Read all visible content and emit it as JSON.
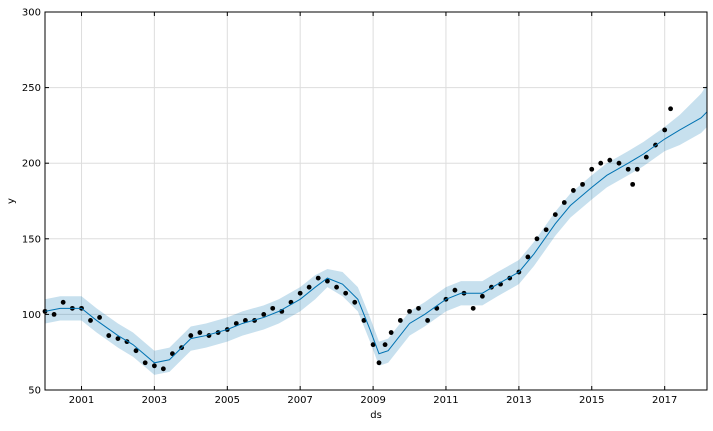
{
  "chart_data": {
    "type": "line",
    "title": "",
    "xlabel": "ds",
    "ylabel": "y",
    "x_range": [
      "2000-01-01",
      "2018-03-01"
    ],
    "ylim": [
      50,
      300
    ],
    "x_tick_labels": [
      "2001",
      "2003",
      "2005",
      "2007",
      "2009",
      "2011",
      "2013",
      "2015",
      "2017"
    ],
    "x_tick_dates": [
      "2001-01-01",
      "2003-01-01",
      "2005-01-01",
      "2007-01-01",
      "2009-01-01",
      "2011-01-01",
      "2013-01-01",
      "2015-01-01",
      "2017-01-01"
    ],
    "y_ticks": [
      50,
      100,
      150,
      200,
      250,
      300
    ],
    "grid": true,
    "colors": {
      "observed": "#000000",
      "forecast_line": "#0072b2",
      "uncertainty_band": "#0072b2"
    },
    "series": [
      {
        "role": "observed",
        "x": [
          "2000-01-01",
          "2000-04-01",
          "2000-07-01",
          "2000-10-01",
          "2001-01-01",
          "2001-04-01",
          "2001-07-01",
          "2001-10-01",
          "2002-01-01",
          "2002-04-01",
          "2002-07-01",
          "2002-10-01",
          "2003-01-01",
          "2003-04-01",
          "2003-07-01",
          "2003-10-01",
          "2004-01-01",
          "2004-04-01",
          "2004-07-01",
          "2004-10-01",
          "2005-01-01",
          "2005-04-01",
          "2005-07-01",
          "2005-10-01",
          "2006-01-01",
          "2006-04-01",
          "2006-07-01",
          "2006-10-01",
          "2007-01-01",
          "2007-04-01",
          "2007-07-01",
          "2007-10-01",
          "2008-01-01",
          "2008-04-01",
          "2008-07-01",
          "2008-10-01",
          "2009-01-01",
          "2009-03-01",
          "2009-05-01",
          "2009-07-01",
          "2009-10-01",
          "2010-01-01",
          "2010-04-01",
          "2010-07-01",
          "2010-10-01",
          "2011-01-01",
          "2011-04-01",
          "2011-07-01",
          "2011-10-01",
          "2012-01-01",
          "2012-04-01",
          "2012-07-01",
          "2012-10-01",
          "2013-01-01",
          "2013-04-01",
          "2013-07-01",
          "2013-10-01",
          "2014-01-01",
          "2014-04-01",
          "2014-07-01",
          "2014-10-01",
          "2015-01-01",
          "2015-04-01",
          "2015-07-01",
          "2015-10-01",
          "2016-01-01",
          "2016-02-15",
          "2016-04-01",
          "2016-07-01",
          "2016-10-01",
          "2017-01-01",
          "2017-03-01"
        ],
        "y": [
          102,
          100,
          108,
          104,
          104,
          96,
          98,
          86,
          84,
          82,
          76,
          68,
          66,
          64,
          74,
          78,
          86,
          88,
          86,
          88,
          90,
          94,
          96,
          96,
          100,
          104,
          102,
          108,
          114,
          118,
          124,
          122,
          118,
          114,
          108,
          96,
          80,
          68,
          80,
          88,
          96,
          102,
          104,
          96,
          104,
          110,
          116,
          114,
          104,
          112,
          118,
          120,
          124,
          128,
          138,
          150,
          156,
          166,
          174,
          182,
          186,
          196,
          200,
          202,
          200,
          196,
          186,
          196,
          204,
          212,
          222,
          236
        ]
      },
      {
        "role": "forecast",
        "x": [
          "2000-01-01",
          "2000-06-01",
          "2001-01-01",
          "2001-06-01",
          "2002-01-01",
          "2002-06-01",
          "2003-01-01",
          "2003-06-01",
          "2004-01-01",
          "2004-06-01",
          "2005-01-01",
          "2005-06-01",
          "2006-01-01",
          "2006-06-01",
          "2007-01-01",
          "2007-06-01",
          "2007-10-01",
          "2008-03-01",
          "2008-08-01",
          "2008-12-01",
          "2009-03-01",
          "2009-06-01",
          "2010-01-01",
          "2010-06-01",
          "2011-01-01",
          "2011-06-01",
          "2012-01-01",
          "2012-06-01",
          "2013-01-01",
          "2013-06-01",
          "2014-01-01",
          "2014-06-01",
          "2015-01-01",
          "2015-06-01",
          "2016-01-01",
          "2016-06-01",
          "2017-01-01",
          "2017-06-01",
          "2018-01-01",
          "2018-03-01"
        ],
        "y": [
          102,
          104,
          104,
          96,
          86,
          80,
          68,
          70,
          84,
          86,
          90,
          94,
          98,
          102,
          110,
          118,
          124,
          120,
          110,
          90,
          74,
          76,
          94,
          100,
          110,
          114,
          114,
          120,
          128,
          140,
          160,
          172,
          184,
          192,
          200,
          206,
          216,
          222,
          230,
          234
        ]
      },
      {
        "role": "forecast_upper",
        "x": [
          "2000-01-01",
          "2000-06-01",
          "2001-01-01",
          "2001-06-01",
          "2002-01-01",
          "2002-06-01",
          "2003-01-01",
          "2003-06-01",
          "2004-01-01",
          "2004-06-01",
          "2005-01-01",
          "2005-06-01",
          "2006-01-01",
          "2006-06-01",
          "2007-01-01",
          "2007-06-01",
          "2007-10-01",
          "2008-03-01",
          "2008-08-01",
          "2008-12-01",
          "2009-03-01",
          "2009-06-01",
          "2010-01-01",
          "2010-06-01",
          "2011-01-01",
          "2011-06-01",
          "2012-01-01",
          "2012-06-01",
          "2013-01-01",
          "2013-06-01",
          "2014-01-01",
          "2014-06-01",
          "2015-01-01",
          "2015-06-01",
          "2016-01-01",
          "2016-06-01",
          "2017-01-01",
          "2017-06-01",
          "2018-01-01",
          "2018-03-01"
        ],
        "y": [
          110,
          112,
          112,
          104,
          94,
          88,
          76,
          78,
          92,
          94,
          98,
          102,
          106,
          110,
          118,
          126,
          130,
          128,
          118,
          98,
          82,
          84,
          102,
          108,
          118,
          122,
          122,
          128,
          136,
          148,
          168,
          180,
          192,
          200,
          208,
          214,
          224,
          232,
          246,
          252
        ]
      },
      {
        "role": "forecast_lower",
        "x": [
          "2000-01-01",
          "2000-06-01",
          "2001-01-01",
          "2001-06-01",
          "2002-01-01",
          "2002-06-01",
          "2003-01-01",
          "2003-06-01",
          "2004-01-01",
          "2004-06-01",
          "2005-01-01",
          "2005-06-01",
          "2006-01-01",
          "2006-06-01",
          "2007-01-01",
          "2007-06-01",
          "2007-10-01",
          "2008-03-01",
          "2008-08-01",
          "2008-12-01",
          "2009-03-01",
          "2009-06-01",
          "2010-01-01",
          "2010-06-01",
          "2011-01-01",
          "2011-06-01",
          "2012-01-01",
          "2012-06-01",
          "2013-01-01",
          "2013-06-01",
          "2014-01-01",
          "2014-06-01",
          "2015-01-01",
          "2015-06-01",
          "2016-01-01",
          "2016-06-01",
          "2017-01-01",
          "2017-06-01",
          "2018-01-01",
          "2018-03-01"
        ],
        "y": [
          94,
          96,
          96,
          88,
          78,
          72,
          60,
          62,
          76,
          78,
          82,
          86,
          90,
          94,
          102,
          110,
          118,
          112,
          102,
          82,
          66,
          68,
          86,
          92,
          102,
          106,
          106,
          112,
          120,
          132,
          152,
          164,
          176,
          184,
          192,
          198,
          208,
          212,
          220,
          224
        ]
      }
    ]
  }
}
